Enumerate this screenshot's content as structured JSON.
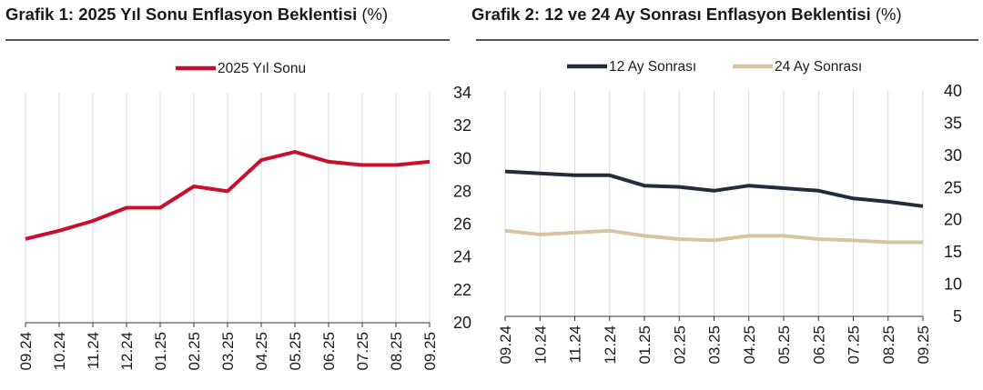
{
  "chart_data": [
    {
      "type": "line",
      "title": "Grafik 1: 2025 Yıl Sonu Enflasyon Beklentisi",
      "unit": "(%)",
      "categories": [
        "09.24",
        "10.24",
        "11.24",
        "12.24",
        "01.25",
        "02.25",
        "03.25",
        "04.25",
        "05.25",
        "06.25",
        "07.25",
        "08.25",
        "09.25"
      ],
      "series": [
        {
          "name": "2025 Yıl Sonu",
          "color": "#c8102e",
          "values": [
            25.1,
            25.6,
            26.2,
            27.0,
            27.0,
            28.3,
            28.0,
            29.9,
            30.4,
            29.8,
            29.6,
            29.6,
            29.8
          ]
        }
      ],
      "ylim": [
        20,
        34
      ],
      "yticks": [
        20,
        22,
        24,
        26,
        28,
        30,
        32,
        34
      ],
      "y_axis_side": "right",
      "grid": "vertical",
      "legend": "top-center"
    },
    {
      "type": "line",
      "title": "Grafik 2: 12 ve 24 Ay Sonrası Enflasyon Beklentisi",
      "unit": "(%)",
      "categories": [
        "09.24",
        "10.24",
        "11.24",
        "12.24",
        "01.25",
        "02.25",
        "03.25",
        "04.25",
        "05.25",
        "06.25",
        "07.25",
        "08.25",
        "09.25"
      ],
      "series": [
        {
          "name": "12 Ay Sonrası",
          "color": "#1f2d3d",
          "values": [
            27.5,
            27.2,
            26.9,
            26.9,
            25.3,
            25.1,
            24.5,
            25.3,
            24.9,
            24.5,
            23.3,
            22.8,
            22.1
          ]
        },
        {
          "name": "24 Ay Sonrası",
          "color": "#d8c3a3",
          "values": [
            18.3,
            17.7,
            18.0,
            18.3,
            17.5,
            17.0,
            16.8,
            17.5,
            17.5,
            17.0,
            16.8,
            16.5,
            16.5
          ]
        }
      ],
      "ylim": [
        5,
        40
      ],
      "yticks": [
        5,
        10,
        15,
        20,
        25,
        30,
        35,
        40
      ],
      "y_axis_side": "right",
      "grid": "vertical",
      "legend": "top-center"
    }
  ]
}
